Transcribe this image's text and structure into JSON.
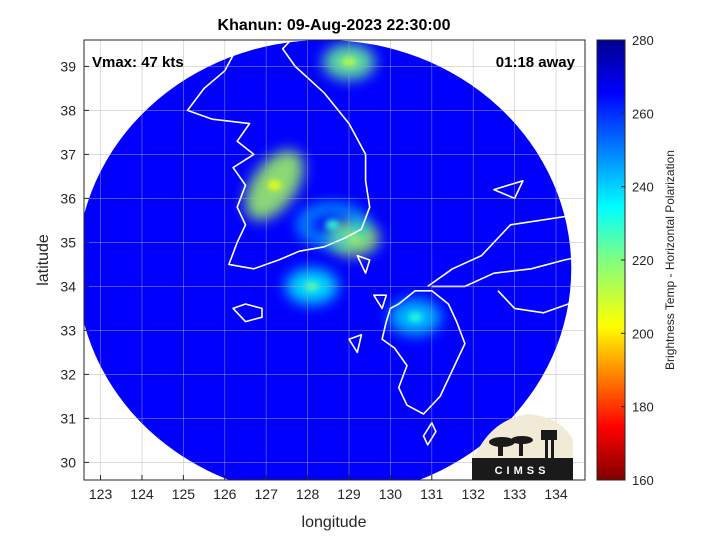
{
  "chart_data": {
    "type": "heatmap",
    "title": "Khanun: 09-Aug-2023 22:30:00",
    "annotations": {
      "vmax": "Vmax: 47 kts",
      "time_away": "01:18 away"
    },
    "xlabel": "longitude",
    "ylabel": "latitude",
    "xlim": [
      122.6,
      134.7
    ],
    "ylim": [
      29.6,
      39.6
    ],
    "x_ticks": [
      123,
      124,
      125,
      126,
      127,
      128,
      129,
      130,
      131,
      132,
      133,
      134
    ],
    "y_ticks": [
      30,
      31,
      32,
      33,
      34,
      35,
      36,
      37,
      38,
      39
    ],
    "grid": true,
    "colorbar": {
      "label": "Brightness Temp - Horizontal Polarization",
      "range": [
        160,
        280
      ],
      "ticks": [
        160,
        180,
        200,
        220,
        240,
        260,
        280
      ],
      "colormap": "jet"
    },
    "swath": {
      "center_lon": 128.4,
      "center_lat": 34.4,
      "radius_deg_lat": 5.2
    },
    "features": [
      {
        "name": "cold band west coast",
        "lon": 127.2,
        "lat": 36.3,
        "value": 215
      },
      {
        "name": "cold spot north",
        "lon": 129.0,
        "lat": 39.1,
        "value": 222
      },
      {
        "name": "eye wall south coast",
        "lon": 129.1,
        "lat": 35.1,
        "value": 214
      },
      {
        "name": "band inner ring",
        "lon": 128.6,
        "lat": 35.4,
        "value": 240
      },
      {
        "name": "band near Kyushu",
        "lon": 130.6,
        "lat": 33.3,
        "value": 240
      },
      {
        "name": "band south",
        "lon": 128.1,
        "lat": 34.0,
        "value": 235
      }
    ],
    "background_value": 266
  },
  "logo": {
    "text": "CIMSS"
  }
}
